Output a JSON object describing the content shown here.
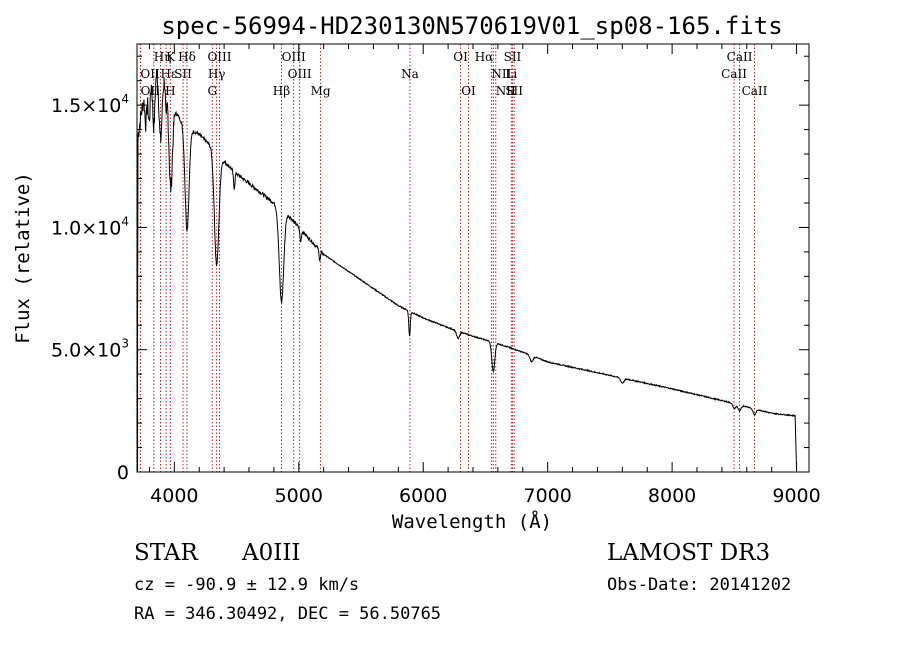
{
  "chart_data": {
    "type": "line",
    "title": "spec-56994-HD230130N570619V01_sp08-165.fits",
    "xlabel": "Wavelength (Å)",
    "ylabel": "Flux (relative)",
    "xlim": [
      3700,
      9100
    ],
    "ylim": [
      0,
      17500
    ],
    "x_ticks": [
      4000,
      5000,
      6000,
      7000,
      8000,
      9000
    ],
    "x_tick_labels": [
      "4000",
      "5000",
      "6000",
      "7000",
      "8000",
      "9000"
    ],
    "y_ticks": [
      0,
      5000,
      10000,
      15000
    ],
    "y_tick_labels": [
      {
        "mant": "0",
        "exp": ""
      },
      {
        "mant": "5.0×10",
        "exp": "3"
      },
      {
        "mant": "1.0×10",
        "exp": "4"
      },
      {
        "mant": "1.5×10",
        "exp": "4"
      }
    ],
    "spectral_lines": [
      {
        "label": "Hη",
        "wavelength": 3835,
        "row": 1,
        "anchor": "start"
      },
      {
        "label": "K",
        "wavelength": 3934,
        "row": 1,
        "anchor": "start"
      },
      {
        "label": "Hδ",
        "wavelength": 4102,
        "row": 1,
        "anchor": "middle"
      },
      {
        "label": "OIII",
        "wavelength": 4363,
        "row": 1,
        "anchor": "middle"
      },
      {
        "label": "OIII",
        "wavelength": 4959,
        "row": 1,
        "anchor": "middle"
      },
      {
        "label": "OI",
        "wavelength": 6300,
        "row": 1,
        "anchor": "middle"
      },
      {
        "label": "Hα",
        "wavelength": 6563,
        "row": 1,
        "anchor": "end"
      },
      {
        "label": "SII",
        "wavelength": 6717,
        "row": 1,
        "anchor": "middle"
      },
      {
        "label": "CaII",
        "wavelength": 8542,
        "row": 1,
        "anchor": "middle"
      },
      {
        "label": "OII",
        "wavelength": 3727,
        "row": 2,
        "anchor": "start"
      },
      {
        "label": "Hε",
        "wavelength": 3889,
        "row": 2,
        "anchor": "start"
      },
      {
        "label": "SII",
        "wavelength": 4070,
        "row": 2,
        "anchor": "middle"
      },
      {
        "label": "Hγ",
        "wavelength": 4340,
        "row": 2,
        "anchor": "middle"
      },
      {
        "label": "OIII",
        "wavelength": 5007,
        "row": 2,
        "anchor": "middle"
      },
      {
        "label": "Na",
        "wavelength": 5893,
        "row": 2,
        "anchor": "middle"
      },
      {
        "label": "NII",
        "wavelength": 6548,
        "row": 2,
        "anchor": "start"
      },
      {
        "label": "Li",
        "wavelength": 6708,
        "row": 2,
        "anchor": "middle"
      },
      {
        "label": "CaII",
        "wavelength": 8498,
        "row": 2,
        "anchor": "middle"
      },
      {
        "label": "OII",
        "wavelength": 3729,
        "row": 3,
        "anchor": "start"
      },
      {
        "label": "H",
        "wavelength": 3968,
        "row": 3,
        "anchor": "middle"
      },
      {
        "label": "G",
        "wavelength": 4305,
        "row": 3,
        "anchor": "middle"
      },
      {
        "label": "Hβ",
        "wavelength": 4861,
        "row": 3,
        "anchor": "middle"
      },
      {
        "label": "Mg",
        "wavelength": 5175,
        "row": 3,
        "anchor": "middle"
      },
      {
        "label": "OI",
        "wavelength": 6364,
        "row": 3,
        "anchor": "middle"
      },
      {
        "label": "NII",
        "wavelength": 6583,
        "row": 3,
        "anchor": "start"
      },
      {
        "label": "SII",
        "wavelength": 6731,
        "row": 3,
        "anchor": "middle"
      },
      {
        "label": "CaII",
        "wavelength": 8662,
        "row": 3,
        "anchor": "middle"
      }
    ],
    "continuum": [
      [
        3700,
        13500
      ],
      [
        3760,
        15500
      ],
      [
        3800,
        16400
      ],
      [
        3850,
        16600
      ],
      [
        3900,
        16300
      ],
      [
        3950,
        15800
      ],
      [
        4000,
        14800
      ],
      [
        4050,
        14400
      ],
      [
        4100,
        14100
      ],
      [
        4200,
        13800
      ],
      [
        4300,
        13300
      ],
      [
        4400,
        12700
      ],
      [
        4500,
        12200
      ],
      [
        4600,
        11800
      ],
      [
        4700,
        11400
      ],
      [
        4800,
        11000
      ],
      [
        4900,
        10600
      ],
      [
        5000,
        10000
      ],
      [
        5200,
        8900
      ],
      [
        5400,
        8200
      ],
      [
        5600,
        7500
      ],
      [
        5800,
        6800
      ],
      [
        6000,
        6300
      ],
      [
        6200,
        5900
      ],
      [
        6400,
        5550
      ],
      [
        6600,
        5250
      ],
      [
        6800,
        4900
      ],
      [
        7000,
        4500
      ],
      [
        7500,
        3950
      ],
      [
        8000,
        3400
      ],
      [
        8500,
        2800
      ],
      [
        8800,
        2400
      ],
      [
        8990,
        2300
      ]
    ],
    "absorption_features": [
      [
        3771,
        1500,
        8
      ],
      [
        3798,
        2000,
        9
      ],
      [
        3835,
        2400,
        10
      ],
      [
        3889,
        2800,
        12
      ],
      [
        3934,
        1500,
        5
      ],
      [
        3970,
        3800,
        14
      ],
      [
        4102,
        4200,
        16
      ],
      [
        4340,
        4600,
        18
      ],
      [
        4481,
        700,
        6
      ],
      [
        4861,
        3800,
        18
      ],
      [
        5015,
        500,
        6
      ],
      [
        5169,
        400,
        6
      ],
      [
        5890,
        1000,
        6
      ],
      [
        6280,
        300,
        12
      ],
      [
        6563,
        1200,
        12
      ],
      [
        6870,
        250,
        12
      ],
      [
        7600,
        200,
        14
      ],
      [
        8500,
        200,
        12
      ],
      [
        8542,
        250,
        12
      ],
      [
        8662,
        250,
        12
      ]
    ],
    "series_endpoint": {
      "x": 9000,
      "y": 0
    }
  },
  "info": {
    "object_type": "STAR",
    "spectral_class": "A0III",
    "survey": "LAMOST DR3",
    "redshift": "cz = -90.9 ± 12.9 km/s",
    "obs_date": "Obs-Date: 20141202",
    "coords": "RA = 346.30492, DEC =  56.50765"
  }
}
